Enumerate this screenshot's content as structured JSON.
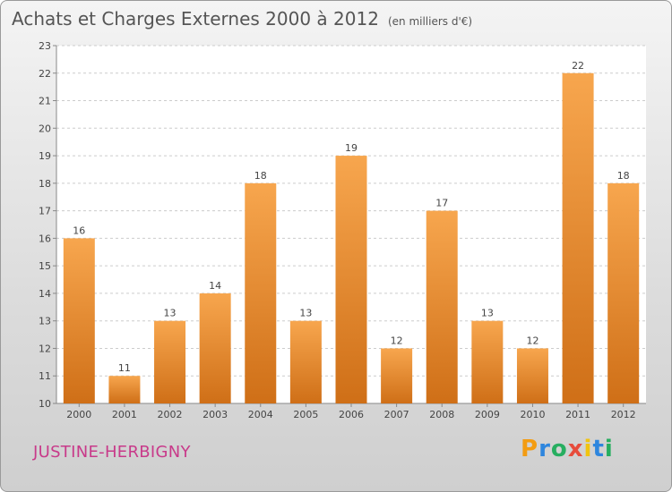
{
  "title": "Achats et Charges Externes 2000 à 2012",
  "subtitle": "(en milliers d'€)",
  "location": "JUSTINE-HERBIGNY",
  "logo": {
    "text": "Proxiti",
    "letters": [
      {
        "ch": "P",
        "color": "#f39c12"
      },
      {
        "ch": "r",
        "color": "#2e86de"
      },
      {
        "ch": "o",
        "color": "#27ae60"
      },
      {
        "ch": "x",
        "color": "#e74c3c"
      },
      {
        "ch": "i",
        "color": "#f1c40f"
      },
      {
        "ch": "t",
        "color": "#2e86de"
      },
      {
        "ch": "i",
        "color": "#27ae60"
      }
    ]
  },
  "colors": {
    "bar_light": "#f7a64e",
    "bar_dark": "#cf6f17",
    "grid": "#cccccc",
    "axis": "#888888",
    "text": "#444444"
  },
  "chart_data": {
    "type": "bar",
    "categories": [
      "2000",
      "2001",
      "2002",
      "2003",
      "2004",
      "2005",
      "2006",
      "2007",
      "2008",
      "2009",
      "2010",
      "2011",
      "2012"
    ],
    "values": [
      16,
      11,
      13,
      14,
      18,
      13,
      19,
      12,
      17,
      13,
      12,
      22,
      18
    ],
    "ylim": [
      10,
      23
    ],
    "yticks": [
      10,
      11,
      12,
      13,
      14,
      15,
      16,
      17,
      18,
      19,
      20,
      21,
      22,
      23
    ],
    "grid": true,
    "data_labels": true
  }
}
